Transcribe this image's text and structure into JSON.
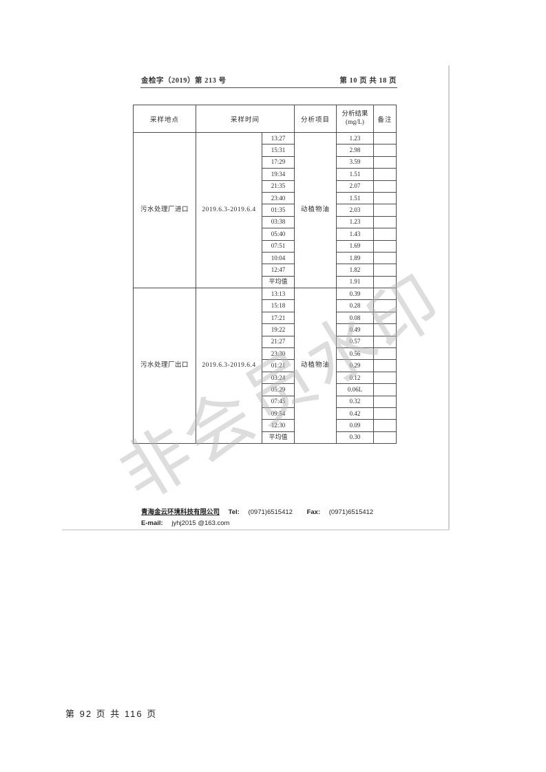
{
  "page": {
    "doc_number": "金检字（2019）第 213 号",
    "page_indicator": "第 10 页 共 18 页",
    "watermark": "非会员水印",
    "footer_page_indicator": "第 92 页 共 116 页"
  },
  "table": {
    "headers": {
      "location": "采样地点",
      "time": "采样时间",
      "item": "分析项目",
      "result_line1": "分析结果",
      "result_line2": "(mg/L)",
      "remark": "备注"
    },
    "sections": [
      {
        "location": "污水处理厂进口",
        "date_range": "2019.6.3-2019.6.4",
        "analysis_item": "动植物油",
        "rows": [
          {
            "time": "13:27",
            "result": "1.23"
          },
          {
            "time": "15:31",
            "result": "2.98"
          },
          {
            "time": "17:29",
            "result": "3.59"
          },
          {
            "time": "19:34",
            "result": "1.51"
          },
          {
            "time": "21:35",
            "result": "2.07"
          },
          {
            "time": "23:40",
            "result": "1.51"
          },
          {
            "time": "01:35",
            "result": "2.03"
          },
          {
            "time": "03:38",
            "result": "1.23"
          },
          {
            "time": "05:40",
            "result": "1.43"
          },
          {
            "time": "07:51",
            "result": "1.69"
          },
          {
            "time": "10:04",
            "result": "1.89"
          },
          {
            "time": "12:47",
            "result": "1.82"
          },
          {
            "time": "平均值",
            "result": "1.91"
          }
        ]
      },
      {
        "location": "污水处理厂出口",
        "date_range": "2019.6.3-2019.6.4",
        "analysis_item": "动植物油",
        "rows": [
          {
            "time": "13:13",
            "result": "0.39"
          },
          {
            "time": "15:18",
            "result": "0.28"
          },
          {
            "time": "17:21",
            "result": "0.08"
          },
          {
            "time": "19:22",
            "result": "0.49"
          },
          {
            "time": "21:27",
            "result": "0.57"
          },
          {
            "time": "23:30",
            "result": "0.56"
          },
          {
            "time": "01:21",
            "result": "0.29"
          },
          {
            "time": "03:24",
            "result": "0.12"
          },
          {
            "time": "05:29",
            "result": "0.06L"
          },
          {
            "time": "07:45",
            "result": "0.32"
          },
          {
            "time": "09:54",
            "result": "0.42"
          },
          {
            "time": "12:30",
            "result": "0.09"
          },
          {
            "time": "平均值",
            "result": "0.30"
          }
        ]
      }
    ]
  },
  "footer": {
    "company": "青海金云环境科技有限公司",
    "tel_label": "Tel:",
    "tel": "(0971)6515412",
    "fax_label": "Fax:",
    "fax": "(0971)6515412",
    "email_label": "E-mail:",
    "email": "jyhj2015 @163.com"
  },
  "colors": {
    "table_border": "#4a4a4a",
    "watermark_gray": "#b5b5b5",
    "text": "#2b2b2b"
  }
}
